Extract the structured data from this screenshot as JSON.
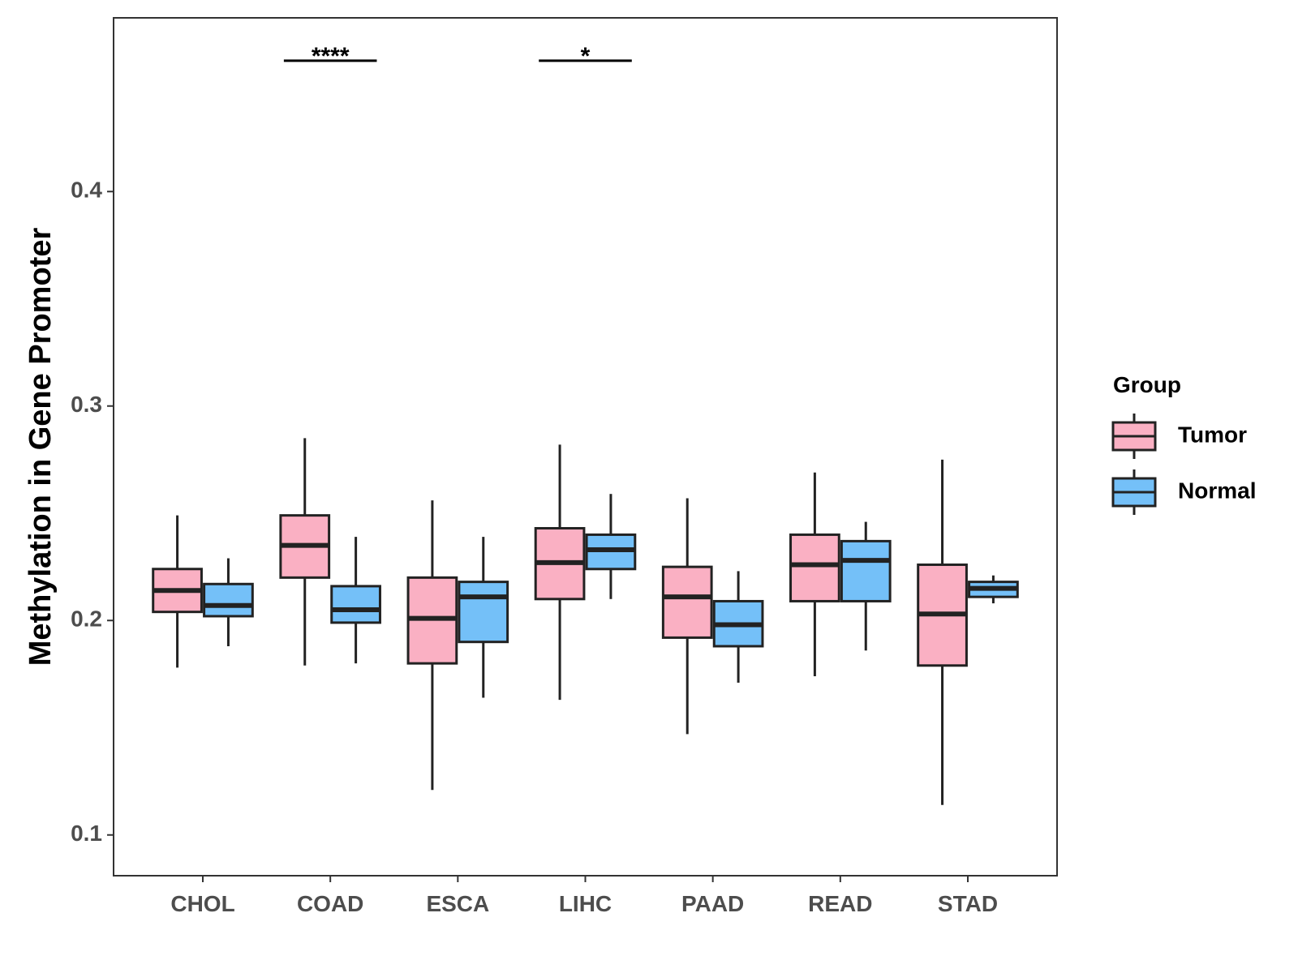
{
  "chart_data": {
    "type": "boxplot",
    "ylabel": "Methylation in Gene Promoter",
    "xlabel": "",
    "ylim": [
      0.081,
      0.481
    ],
    "yticks": [
      0.1,
      0.2,
      0.3,
      0.4
    ],
    "ytick_labels": [
      "0.1",
      "0.2",
      "0.3",
      "0.4"
    ],
    "categories": [
      "CHOL",
      "COAD",
      "ESCA",
      "LIHC",
      "PAAD",
      "READ",
      "STAD"
    ],
    "legend": {
      "title": "Group",
      "position": "right",
      "entries": [
        {
          "name": "Tumor",
          "color": "#FAB0C3"
        },
        {
          "name": "Normal",
          "color": "#74C0F8"
        }
      ]
    },
    "series": [
      {
        "name": "Tumor",
        "color": "#FAB0C3",
        "boxes": [
          {
            "category": "CHOL",
            "min": 0.178,
            "q1": 0.204,
            "median": 0.214,
            "q3": 0.224,
            "max": 0.249
          },
          {
            "category": "COAD",
            "min": 0.179,
            "q1": 0.22,
            "median": 0.235,
            "q3": 0.249,
            "max": 0.285
          },
          {
            "category": "ESCA",
            "min": 0.121,
            "q1": 0.18,
            "median": 0.201,
            "q3": 0.22,
            "max": 0.256
          },
          {
            "category": "LIHC",
            "min": 0.163,
            "q1": 0.21,
            "median": 0.227,
            "q3": 0.243,
            "max": 0.282
          },
          {
            "category": "PAAD",
            "min": 0.147,
            "q1": 0.192,
            "median": 0.211,
            "q3": 0.225,
            "max": 0.257
          },
          {
            "category": "READ",
            "min": 0.174,
            "q1": 0.209,
            "median": 0.226,
            "q3": 0.24,
            "max": 0.269
          },
          {
            "category": "STAD",
            "min": 0.114,
            "q1": 0.179,
            "median": 0.203,
            "q3": 0.226,
            "max": 0.275
          }
        ]
      },
      {
        "name": "Normal",
        "color": "#74C0F8",
        "boxes": [
          {
            "category": "CHOL",
            "min": 0.188,
            "q1": 0.202,
            "median": 0.207,
            "q3": 0.217,
            "max": 0.229
          },
          {
            "category": "COAD",
            "min": 0.18,
            "q1": 0.199,
            "median": 0.205,
            "q3": 0.216,
            "max": 0.239
          },
          {
            "category": "ESCA",
            "min": 0.164,
            "q1": 0.19,
            "median": 0.211,
            "q3": 0.218,
            "max": 0.239
          },
          {
            "category": "LIHC",
            "min": 0.21,
            "q1": 0.224,
            "median": 0.233,
            "q3": 0.24,
            "max": 0.259
          },
          {
            "category": "PAAD",
            "min": 0.171,
            "q1": 0.188,
            "median": 0.198,
            "q3": 0.209,
            "max": 0.223
          },
          {
            "category": "READ",
            "min": 0.186,
            "q1": 0.209,
            "median": 0.228,
            "q3": 0.237,
            "max": 0.246
          },
          {
            "category": "STAD",
            "min": 0.208,
            "q1": 0.211,
            "median": 0.215,
            "q3": 0.218,
            "max": 0.221
          }
        ]
      }
    ],
    "annotations": [
      {
        "category": "COAD",
        "label": "****",
        "y": 0.461
      },
      {
        "category": "LIHC",
        "label": "*",
        "y": 0.461
      }
    ],
    "grid": false
  }
}
